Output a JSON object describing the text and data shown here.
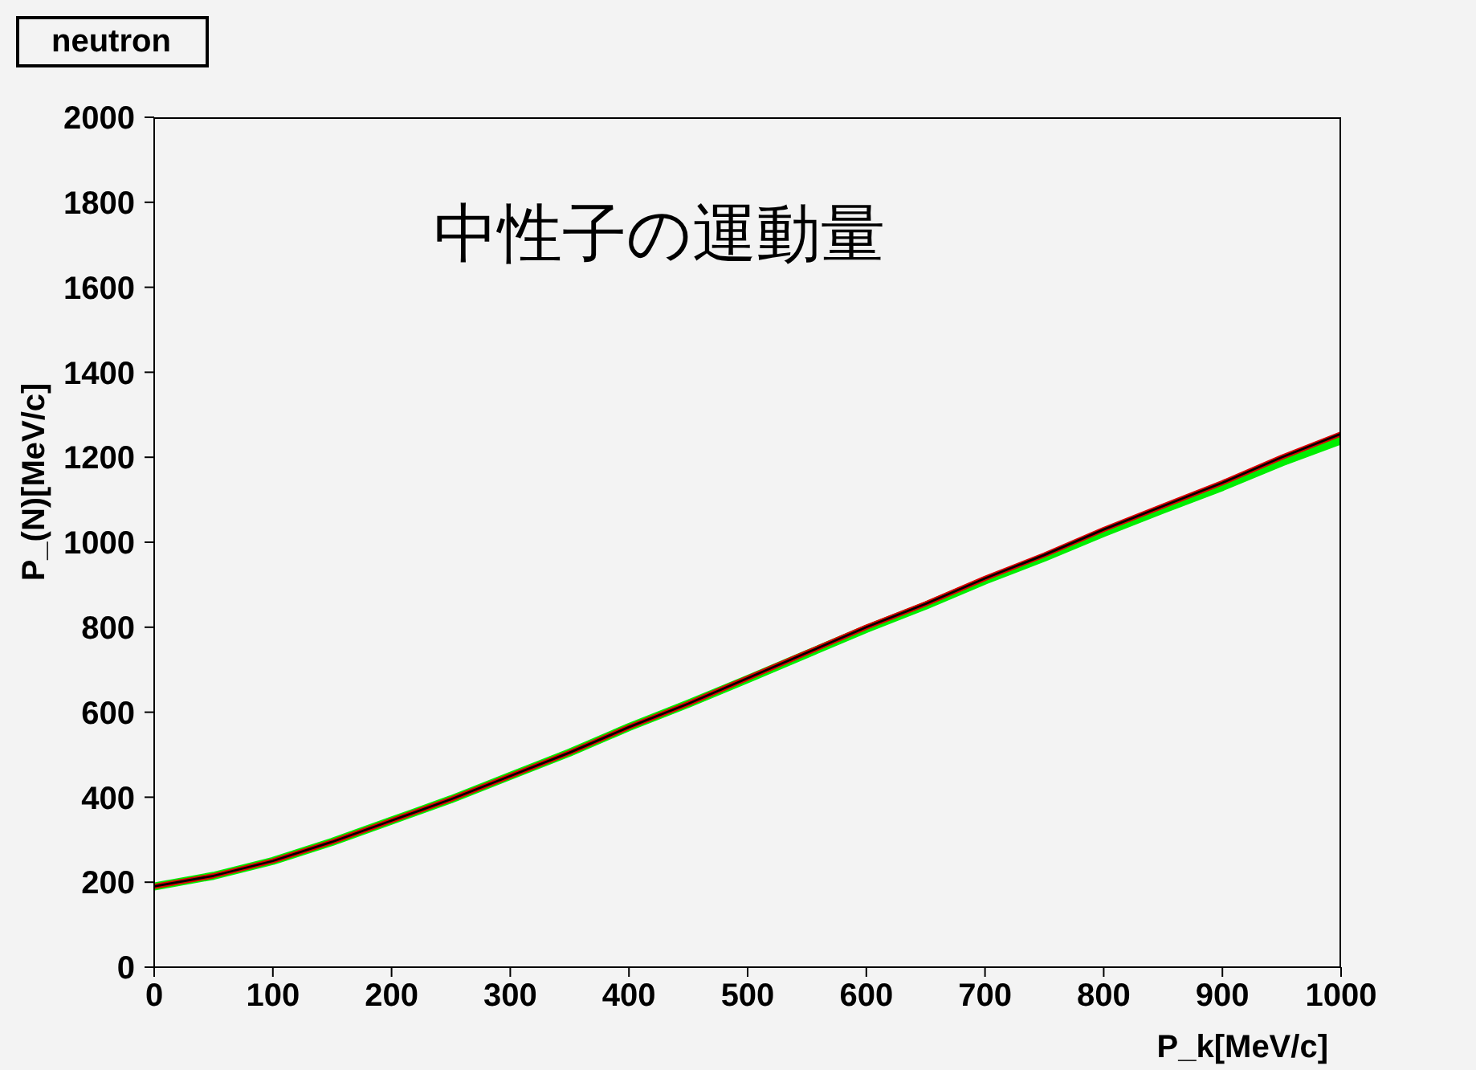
{
  "chart_data": {
    "type": "line",
    "title": "neutron",
    "xlabel": "P_k[MeV/c]",
    "ylabel": "P_(N)[MeV/c]",
    "annotations": [
      "中性子の運動量"
    ],
    "x": [
      0,
      50,
      100,
      150,
      200,
      250,
      300,
      350,
      400,
      450,
      500,
      550,
      600,
      650,
      700,
      750,
      800,
      850,
      900,
      950,
      1000
    ],
    "series": [
      {
        "color": "#00ee00",
        "values": [
          190,
          215,
          250,
          295,
          345,
          395,
          450,
          505,
          565,
          620,
          678,
          737,
          796,
          851,
          910,
          964,
          1022,
          1077,
          1130,
          1188,
          1240
        ]
      },
      {
        "color": "#dd0000",
        "values": [
          190,
          215,
          250,
          295,
          345,
          395,
          450,
          505,
          565,
          620,
          680,
          740,
          800,
          855,
          915,
          970,
          1030,
          1085,
          1140,
          1200,
          1255
        ]
      },
      {
        "color": "#000000",
        "values": [
          190,
          215,
          250,
          295,
          345,
          395,
          450,
          505,
          565,
          620,
          680,
          740,
          800,
          855,
          915,
          970,
          1030,
          1085,
          1140,
          1200,
          1255
        ]
      }
    ],
    "xlim": [
      0,
      1000
    ],
    "xticks": [
      0,
      100,
      200,
      300,
      400,
      500,
      600,
      700,
      800,
      900,
      1000
    ],
    "ylim": [
      0,
      2000
    ],
    "yticks": [
      0,
      200,
      400,
      600,
      800,
      1000,
      1200,
      1400,
      1600,
      1800,
      2000
    ],
    "grid": false,
    "legend": false,
    "marker": "none",
    "line_style": "solid"
  }
}
